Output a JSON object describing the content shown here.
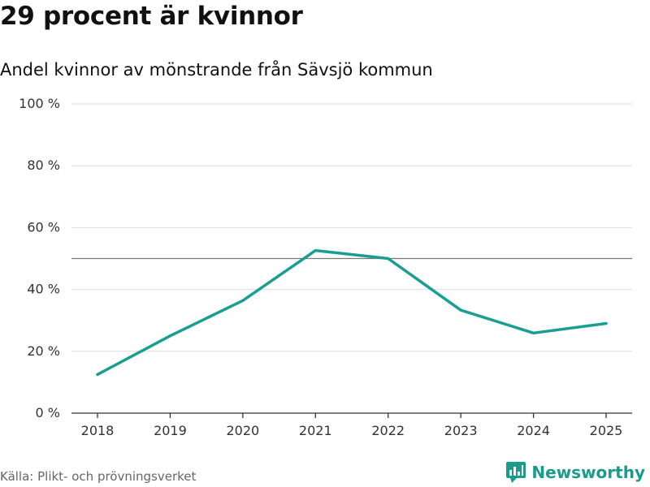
{
  "header": {
    "title": "29 procent är kvinnor",
    "subtitle": "Andel kvinnor av mönstrande från Sävsjö kommun"
  },
  "footer": {
    "source": "Källa: Plikt- och prövningsverket",
    "logo_text": "Newsworthy",
    "logo_icon": "newsworthy-logo-icon"
  },
  "chart_data": {
    "type": "line",
    "title": "29 procent är kvinnor",
    "subtitle": "Andel kvinnor av mönstrande från Sävsjö kommun",
    "xlabel": "",
    "ylabel": "",
    "categories": [
      "2018",
      "2019",
      "2020",
      "2021",
      "2022",
      "2023",
      "2024",
      "2025"
    ],
    "series": [
      {
        "values": [
          12.5,
          25.0,
          36.4,
          52.6,
          50.0,
          33.3,
          25.9,
          29.0
        ]
      }
    ],
    "ylim": [
      0,
      100
    ],
    "yticks": [
      0,
      20,
      40,
      60,
      80,
      100
    ],
    "ytick_labels": [
      "0 %",
      "20 %",
      "40 %",
      "60 %",
      "80 %",
      "100 %"
    ],
    "reference_line": 50,
    "grid": true,
    "colors": {
      "line": "#1a9e93",
      "grid": "#dddddd",
      "reference": "#777777",
      "axis": "#333333",
      "brand": "#1a9b8c"
    }
  }
}
